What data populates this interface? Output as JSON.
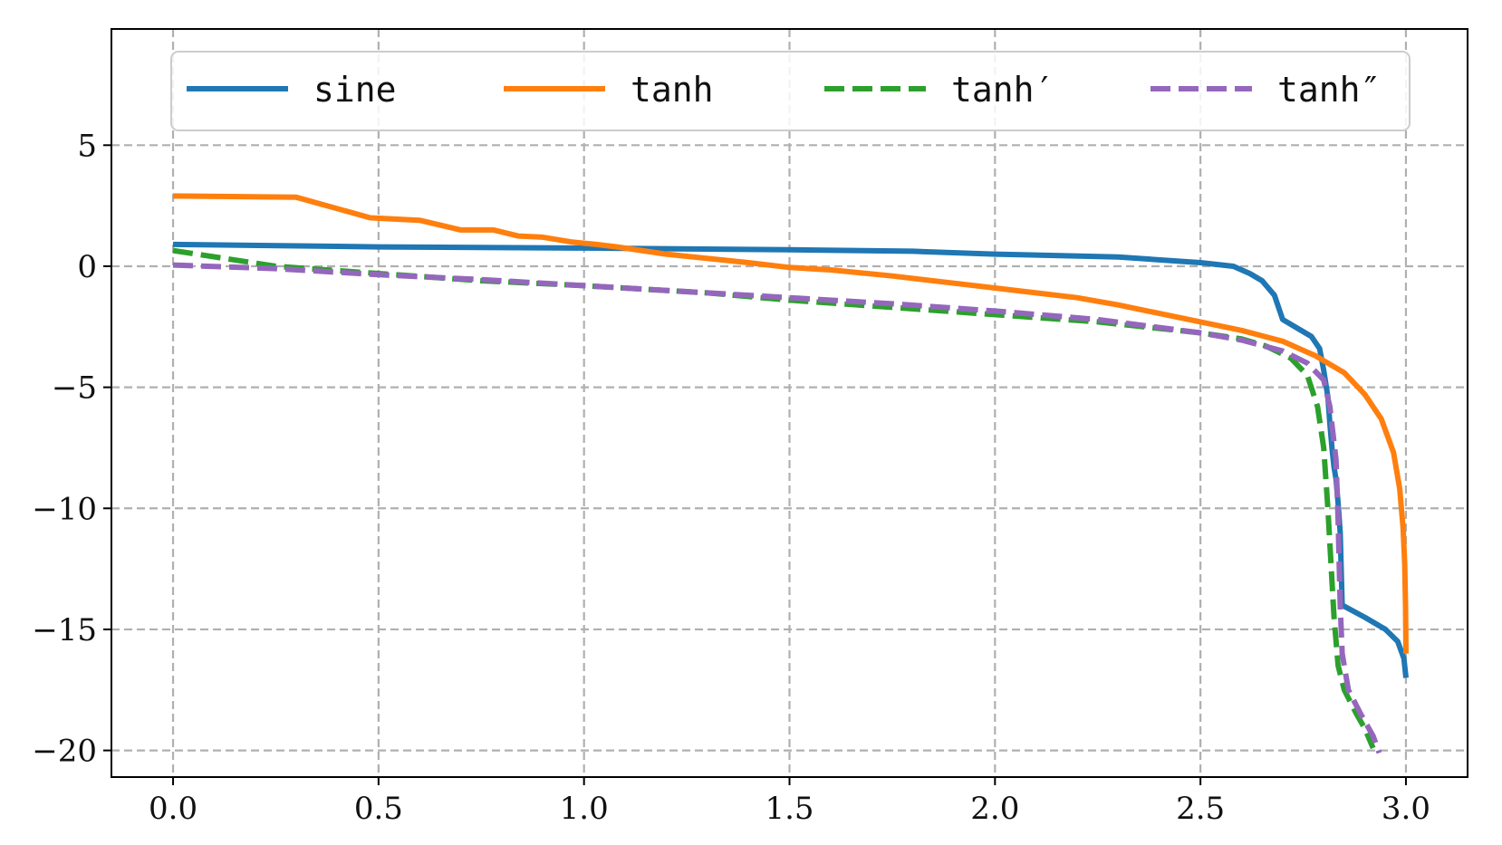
{
  "chart_data": {
    "type": "line",
    "title": "",
    "xlabel": "",
    "ylabel": "",
    "xlim": [
      -0.15,
      3.15
    ],
    "ylim": [
      -21.1,
      9.8
    ],
    "xticks": [
      0.0,
      0.5,
      1.0,
      1.5,
      2.0,
      2.5,
      3.0
    ],
    "xtick_labels": [
      "0.0",
      "0.5",
      "1.0",
      "1.5",
      "2.0",
      "2.5",
      "3.0"
    ],
    "yticks": [
      5,
      0,
      -5,
      -10,
      -15,
      -20
    ],
    "ytick_labels": [
      "5",
      "0",
      "−5",
      "−10",
      "−15",
      "−20"
    ],
    "grid": true,
    "legend": {
      "placement": "top",
      "columns": 4
    },
    "series": [
      {
        "name": "sine",
        "color": "#1f77b4",
        "dashed": false,
        "points": [
          [
            0.0,
            0.9
          ],
          [
            0.5,
            0.8
          ],
          [
            1.0,
            0.75
          ],
          [
            1.5,
            0.68
          ],
          [
            1.8,
            0.62
          ],
          [
            2.0,
            0.5
          ],
          [
            2.3,
            0.38
          ],
          [
            2.5,
            0.15
          ],
          [
            2.58,
            0.0
          ],
          [
            2.62,
            -0.3
          ],
          [
            2.65,
            -0.6
          ],
          [
            2.68,
            -1.2
          ],
          [
            2.7,
            -2.2
          ],
          [
            2.74,
            -2.6
          ],
          [
            2.77,
            -2.9
          ],
          [
            2.79,
            -3.4
          ],
          [
            2.8,
            -4.3
          ],
          [
            2.81,
            -5.4
          ],
          [
            2.815,
            -6.5
          ],
          [
            2.82,
            -7.5
          ],
          [
            2.825,
            -8.3
          ],
          [
            2.83,
            -8.8
          ],
          [
            2.835,
            -9.8
          ],
          [
            2.84,
            -11.0
          ],
          [
            2.845,
            -14.0
          ],
          [
            2.9,
            -14.5
          ],
          [
            2.95,
            -15.0
          ],
          [
            2.98,
            -15.5
          ],
          [
            2.995,
            -16.2
          ],
          [
            3.0,
            -17.0
          ]
        ]
      },
      {
        "name": "tanh",
        "color": "#ff7f0e",
        "dashed": false,
        "points": [
          [
            0.0,
            2.9
          ],
          [
            0.3,
            2.85
          ],
          [
            0.48,
            2.0
          ],
          [
            0.6,
            1.9
          ],
          [
            0.7,
            1.5
          ],
          [
            0.78,
            1.5
          ],
          [
            0.84,
            1.25
          ],
          [
            0.9,
            1.2
          ],
          [
            0.97,
            1.0
          ],
          [
            1.03,
            0.9
          ],
          [
            1.08,
            0.8
          ],
          [
            1.2,
            0.5
          ],
          [
            1.4,
            0.15
          ],
          [
            1.5,
            -0.05
          ],
          [
            1.6,
            -0.15
          ],
          [
            1.75,
            -0.4
          ],
          [
            1.9,
            -0.7
          ],
          [
            2.0,
            -0.9
          ],
          [
            2.1,
            -1.1
          ],
          [
            2.2,
            -1.3
          ],
          [
            2.3,
            -1.6
          ],
          [
            2.4,
            -1.95
          ],
          [
            2.5,
            -2.3
          ],
          [
            2.6,
            -2.65
          ],
          [
            2.7,
            -3.1
          ],
          [
            2.78,
            -3.7
          ],
          [
            2.85,
            -4.4
          ],
          [
            2.9,
            -5.3
          ],
          [
            2.94,
            -6.3
          ],
          [
            2.97,
            -7.7
          ],
          [
            2.985,
            -9.2
          ],
          [
            2.993,
            -10.8
          ],
          [
            2.997,
            -12.3
          ],
          [
            2.999,
            -14.0
          ],
          [
            3.0,
            -16.0
          ]
        ]
      },
      {
        "name": "tanh′",
        "color": "#2ca02c",
        "dashed": true,
        "points": [
          [
            0.0,
            0.65
          ],
          [
            0.25,
            0.0
          ],
          [
            0.5,
            -0.3
          ],
          [
            0.75,
            -0.6
          ],
          [
            1.0,
            -0.8
          ],
          [
            1.3,
            -1.1
          ],
          [
            1.5,
            -1.4
          ],
          [
            1.75,
            -1.7
          ],
          [
            2.0,
            -2.0
          ],
          [
            2.25,
            -2.3
          ],
          [
            2.5,
            -2.75
          ],
          [
            2.6,
            -3.0
          ],
          [
            2.66,
            -3.3
          ],
          [
            2.72,
            -3.8
          ],
          [
            2.76,
            -4.5
          ],
          [
            2.785,
            -5.8
          ],
          [
            2.8,
            -7.5
          ],
          [
            2.81,
            -10.0
          ],
          [
            2.82,
            -13.0
          ],
          [
            2.825,
            -14.5
          ],
          [
            2.835,
            -16.5
          ],
          [
            2.85,
            -17.5
          ],
          [
            2.88,
            -18.5
          ],
          [
            2.9,
            -19.1
          ],
          [
            2.92,
            -19.9
          ]
        ]
      },
      {
        "name": "tanh″",
        "color": "#9467bd",
        "dashed": true,
        "points": [
          [
            0.0,
            0.05
          ],
          [
            0.25,
            -0.1
          ],
          [
            0.5,
            -0.35
          ],
          [
            0.75,
            -0.55
          ],
          [
            1.0,
            -0.8
          ],
          [
            1.25,
            -1.05
          ],
          [
            1.5,
            -1.3
          ],
          [
            1.75,
            -1.55
          ],
          [
            2.0,
            -1.85
          ],
          [
            2.25,
            -2.2
          ],
          [
            2.5,
            -2.75
          ],
          [
            2.6,
            -3.05
          ],
          [
            2.7,
            -3.5
          ],
          [
            2.76,
            -4.0
          ],
          [
            2.8,
            -4.7
          ],
          [
            2.815,
            -5.8
          ],
          [
            2.83,
            -8.0
          ],
          [
            2.835,
            -10.5
          ],
          [
            2.84,
            -14.0
          ],
          [
            2.845,
            -16.0
          ],
          [
            2.86,
            -17.5
          ],
          [
            2.89,
            -18.5
          ],
          [
            2.92,
            -19.4
          ],
          [
            2.935,
            -20.1
          ]
        ]
      }
    ]
  }
}
